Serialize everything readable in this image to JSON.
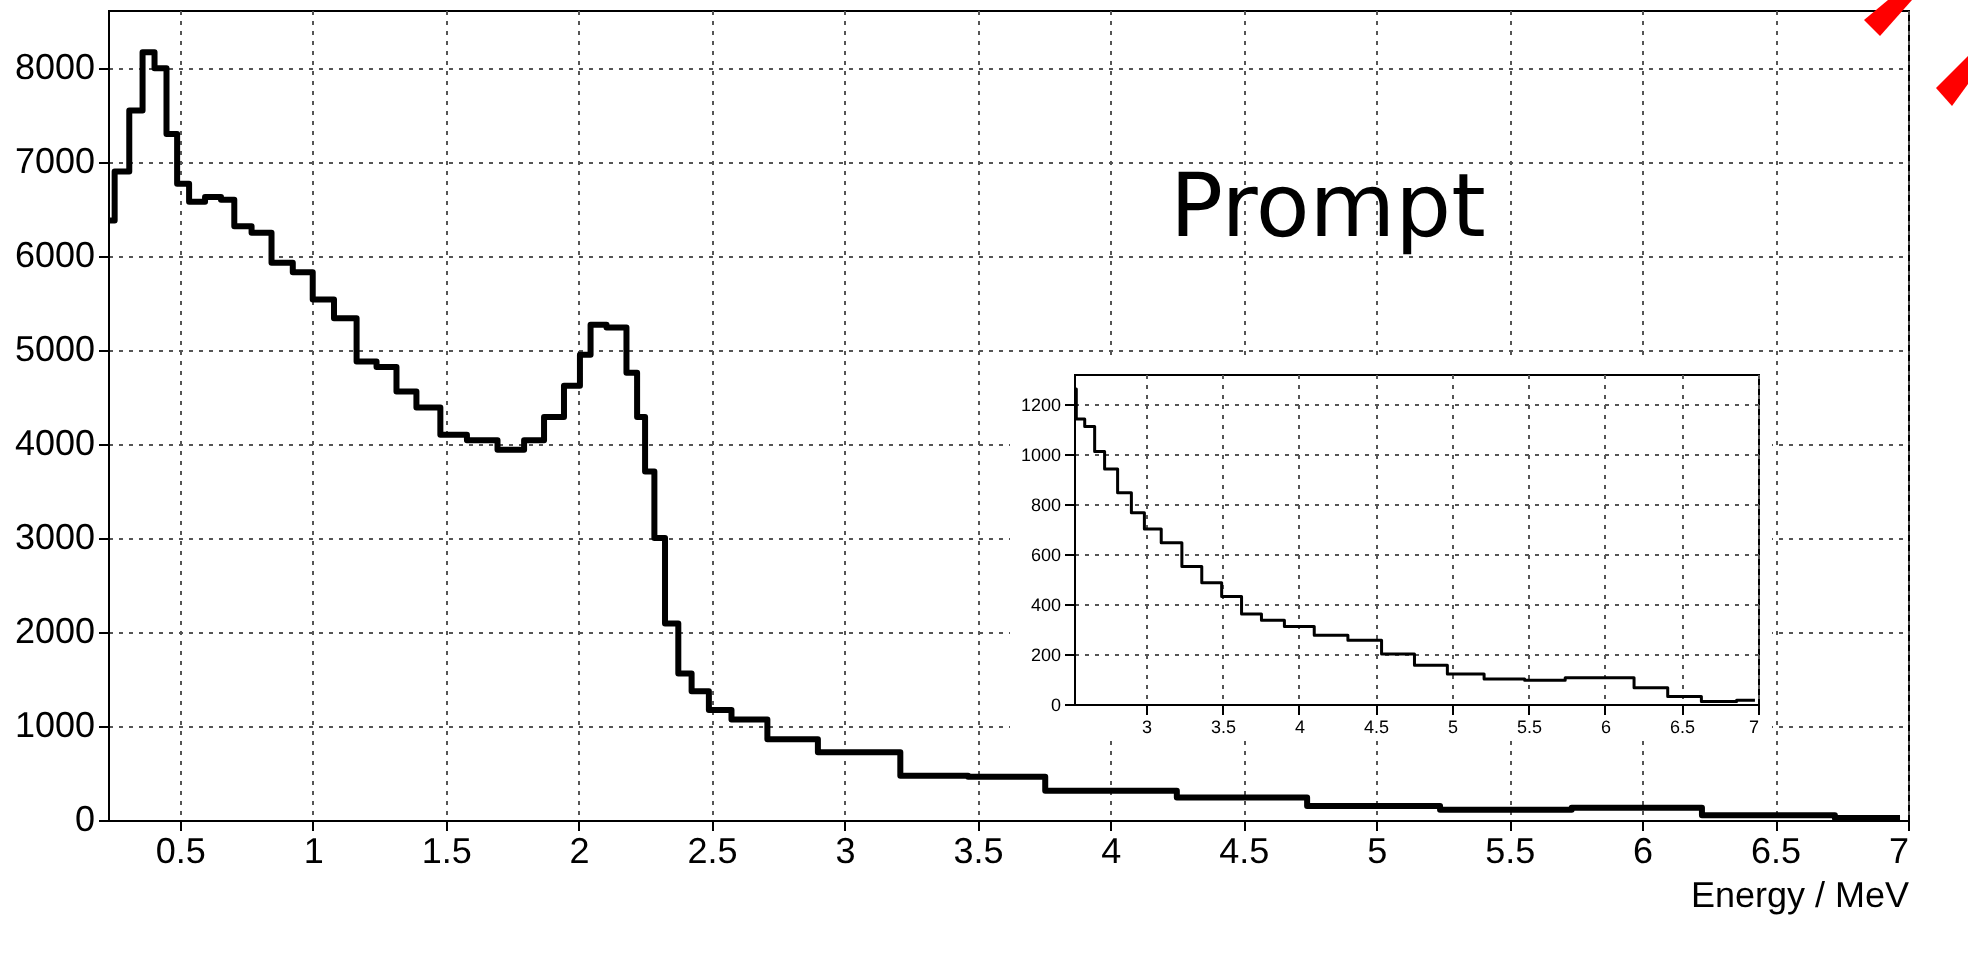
{
  "chart_data": [
    {
      "type": "step",
      "xlabel": "Energy / MeV",
      "annotations": [
        "Prompt"
      ],
      "grid": true,
      "xlim": [
        0.23,
        7
      ],
      "ylim": [
        0,
        8620
      ],
      "xticks": [
        0.5,
        1,
        1.5,
        2,
        2.5,
        3,
        3.5,
        4,
        4.5,
        5,
        5.5,
        6,
        6.5,
        7
      ],
      "yticks": [
        0,
        1000,
        2000,
        3000,
        4000,
        5000,
        6000,
        7000,
        8000
      ],
      "x": [
        0.23,
        0.28,
        0.34,
        0.38,
        0.43,
        0.47,
        0.51,
        0.56,
        0.63,
        0.68,
        0.73,
        0.81,
        0.88,
        0.97,
        1.03,
        1.13,
        1.2,
        1.28,
        1.35,
        1.43,
        1.53,
        1.63,
        1.76,
        1.83,
        1.91,
        1.98,
        2.03,
        2.06,
        2.15,
        2.21,
        2.23,
        2.27,
        2.3,
        2.35,
        2.4,
        2.45,
        2.53,
        2.62,
        2.8,
        3.0,
        3.42,
        3.51,
        4.0,
        4.5,
        4.98,
        5.5,
        5.97,
        6.48,
        6.97
      ],
      "series": [
        {
          "color": "#000000",
          "values": [
            6380,
            6900,
            7550,
            8170,
            8000,
            7300,
            6770,
            6580,
            6630,
            6600,
            6320,
            6250,
            5930,
            5830,
            5540,
            5340,
            4880,
            4820,
            4560,
            4390,
            4100,
            4040,
            3940,
            4040,
            4290,
            4620,
            4950,
            5270,
            5240,
            4760,
            4290,
            3710,
            3000,
            2090,
            1560,
            1370,
            1170,
            1070,
            860,
            720,
            470,
            460,
            310,
            240,
            150,
            110,
            130,
            50,
            20
          ]
        }
      ]
    },
    {
      "type": "step",
      "grid": true,
      "xlim": [
        2.53,
        7
      ],
      "ylim": [
        0,
        1320
      ],
      "xticks": [
        3,
        3.5,
        4,
        4.5,
        5,
        5.5,
        6,
        6.5,
        7
      ],
      "yticks": [
        0,
        200,
        400,
        600,
        800,
        1000,
        1200
      ],
      "x": [
        2.53,
        2.56,
        2.64,
        2.69,
        2.77,
        2.86,
        2.95,
        3.03,
        3.17,
        3.3,
        3.43,
        3.56,
        3.69,
        3.82,
        3.99,
        4.21,
        4.43,
        4.65,
        4.86,
        5.08,
        5.34,
        5.61,
        5.87,
        6.08,
        6.3,
        6.52,
        6.74,
        6.98
      ],
      "series": [
        {
          "color": "#000000",
          "values": [
            1260,
            1140,
            1110,
            1010,
            940,
            845,
            765,
            700,
            645,
            550,
            485,
            430,
            360,
            335,
            310,
            275,
            255,
            200,
            155,
            120,
            100,
            95,
            105,
            105,
            65,
            30,
            10,
            15
          ]
        }
      ]
    }
  ]
}
